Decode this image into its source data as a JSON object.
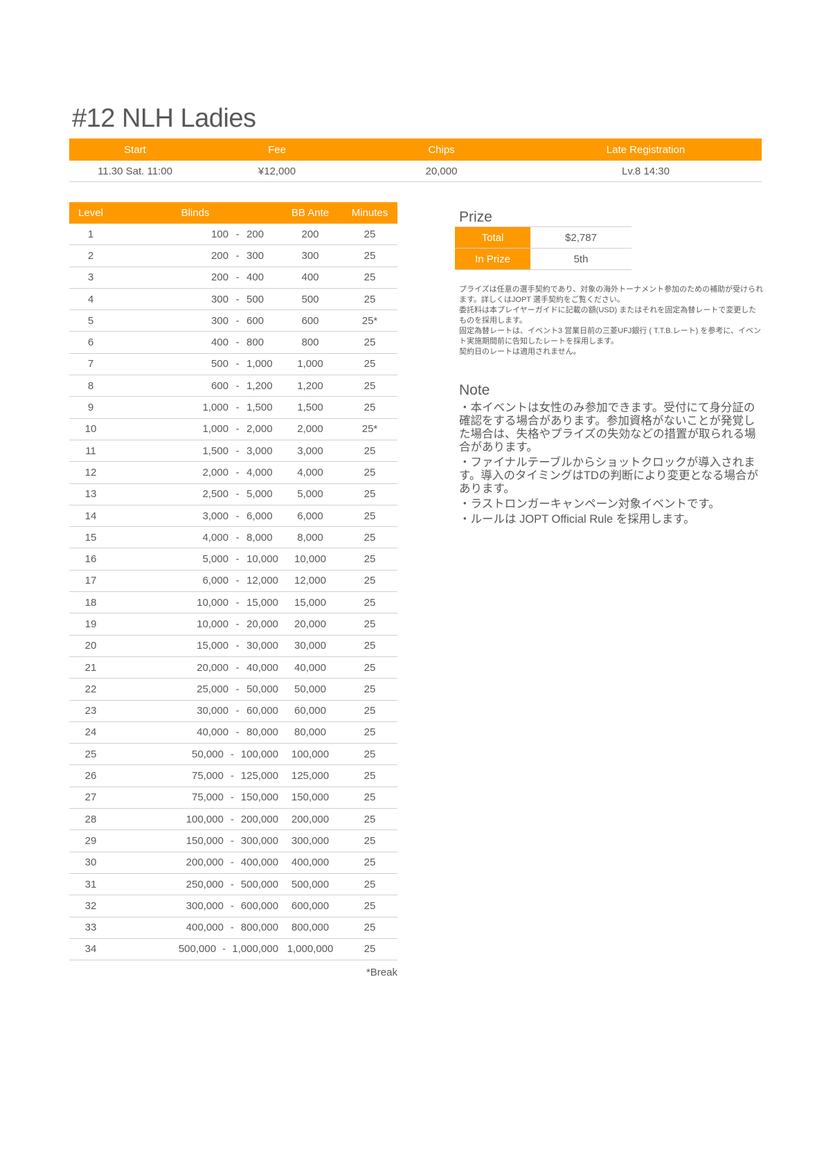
{
  "title": "#12 NLH Ladies",
  "info": {
    "headers": [
      "Start",
      "Fee",
      "Chips",
      "Late Registration"
    ],
    "values": [
      "11.30 Sat. 11:00",
      "¥12,000",
      "20,000",
      "Lv.8 14:30"
    ]
  },
  "structure": {
    "headers": {
      "level": "Level",
      "blinds": "Blinds",
      "ante": "BB Ante",
      "minutes": "Minutes"
    },
    "rows": [
      [
        "1",
        "100",
        "200",
        "200",
        "25"
      ],
      [
        "2",
        "200",
        "300",
        "300",
        "25"
      ],
      [
        "3",
        "200",
        "400",
        "400",
        "25"
      ],
      [
        "4",
        "300",
        "500",
        "500",
        "25"
      ],
      [
        "5",
        "300",
        "600",
        "600",
        "25*"
      ],
      [
        "6",
        "400",
        "800",
        "800",
        "25"
      ],
      [
        "7",
        "500",
        "1,000",
        "1,000",
        "25"
      ],
      [
        "8",
        "600",
        "1,200",
        "1,200",
        "25"
      ],
      [
        "9",
        "1,000",
        "1,500",
        "1,500",
        "25"
      ],
      [
        "10",
        "1,000",
        "2,000",
        "2,000",
        "25*"
      ],
      [
        "11",
        "1,500",
        "3,000",
        "3,000",
        "25"
      ],
      [
        "12",
        "2,000",
        "4,000",
        "4,000",
        "25"
      ],
      [
        "13",
        "2,500",
        "5,000",
        "5,000",
        "25"
      ],
      [
        "14",
        "3,000",
        "6,000",
        "6,000",
        "25"
      ],
      [
        "15",
        "4,000",
        "8,000",
        "8,000",
        "25"
      ],
      [
        "16",
        "5,000",
        "10,000",
        "10,000",
        "25"
      ],
      [
        "17",
        "6,000",
        "12,000",
        "12,000",
        "25"
      ],
      [
        "18",
        "10,000",
        "15,000",
        "15,000",
        "25"
      ],
      [
        "19",
        "10,000",
        "20,000",
        "20,000",
        "25"
      ],
      [
        "20",
        "15,000",
        "30,000",
        "30,000",
        "25"
      ],
      [
        "21",
        "20,000",
        "40,000",
        "40,000",
        "25"
      ],
      [
        "22",
        "25,000",
        "50,000",
        "50,000",
        "25"
      ],
      [
        "23",
        "30,000",
        "60,000",
        "60,000",
        "25"
      ],
      [
        "24",
        "40,000",
        "80,000",
        "80,000",
        "25"
      ],
      [
        "25",
        "50,000",
        "100,000",
        "100,000",
        "25"
      ],
      [
        "26",
        "75,000",
        "125,000",
        "125,000",
        "25"
      ],
      [
        "27",
        "75,000",
        "150,000",
        "150,000",
        "25"
      ],
      [
        "28",
        "100,000",
        "200,000",
        "200,000",
        "25"
      ],
      [
        "29",
        "150,000",
        "300,000",
        "300,000",
        "25"
      ],
      [
        "30",
        "200,000",
        "400,000",
        "400,000",
        "25"
      ],
      [
        "31",
        "250,000",
        "500,000",
        "500,000",
        "25"
      ],
      [
        "32",
        "300,000",
        "600,000",
        "600,000",
        "25"
      ],
      [
        "33",
        "400,000",
        "800,000",
        "800,000",
        "25"
      ],
      [
        "34",
        "500,000",
        "1,000,000",
        "1,000,000",
        "25"
      ]
    ],
    "separator": "-",
    "break_note": "*Break"
  },
  "prize": {
    "title": "Prize",
    "rows": [
      {
        "label": "Total",
        "value": "$2,787"
      },
      {
        "label": "In Prize",
        "value": "5th"
      }
    ],
    "notes": [
      "プライズは任意の選手契約であり、対象の海外トーナメント参加のための補助が受けられます。詳しくはJOPT 選手契約をご覧ください。",
      "委託料は本プレイヤーガイドに記載の額(USD) またはそれを固定為替レートで変更したものを採用します。",
      "固定為替レートは、イベント3 営業日前の三菱UFJ銀行 ( T.T.B.レート) を参考に、イベント実施期間前に告知したレートを採用します。",
      "契約日のレートは適用されません。"
    ]
  },
  "note": {
    "title": "Note",
    "items": [
      "・本イベントは女性のみ参加できます。受付にて身分証の確認をする場合があります。参加資格がないことが発覚した場合は、失格やプライズの失効などの措置が取られる場合があります。",
      "・ファイナルテーブルからショットクロックが導入されます。導入のタイミングはTDの判断により変更となる場合があります。",
      "・ラストロンガーキャンペーン対象イベントです。",
      "・ルールは JOPT Official Rule を採用します。"
    ]
  },
  "colors": {
    "accent": "#FF9900",
    "text": "#595959",
    "rule": "#d0d0d0"
  }
}
